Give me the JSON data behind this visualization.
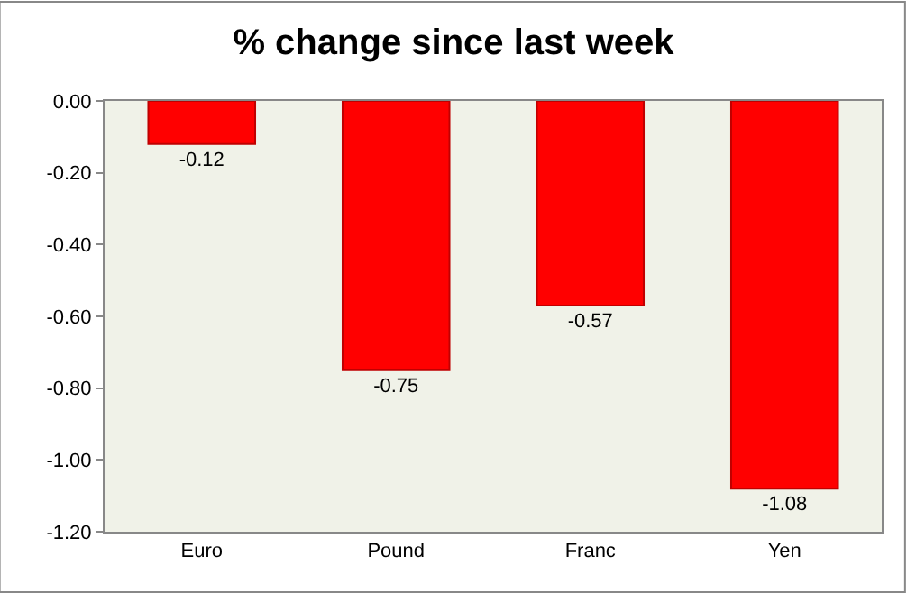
{
  "chart_data": {
    "type": "bar",
    "title": "% change since last week",
    "categories": [
      "Euro",
      "Pound",
      "Franc",
      "Yen"
    ],
    "values": [
      -0.12,
      -0.75,
      -0.57,
      -1.08
    ],
    "value_labels": [
      "-0.12",
      "-0.75",
      "-0.57",
      "-1.08"
    ],
    "color": "#ff0000",
    "ylim": [
      -1.2,
      0
    ],
    "yticks": [
      {
        "value": 0,
        "label": "0.00"
      },
      {
        "value": -0.2,
        "label": "-0.20"
      },
      {
        "value": -0.4,
        "label": "-0.40"
      },
      {
        "value": -0.6,
        "label": "-0.60"
      },
      {
        "value": -0.8,
        "label": "-0.80"
      },
      {
        "value": -1.0,
        "label": "-1.00"
      },
      {
        "value": -1.2,
        "label": "-1.20"
      }
    ],
    "grid": false,
    "legend": false
  }
}
